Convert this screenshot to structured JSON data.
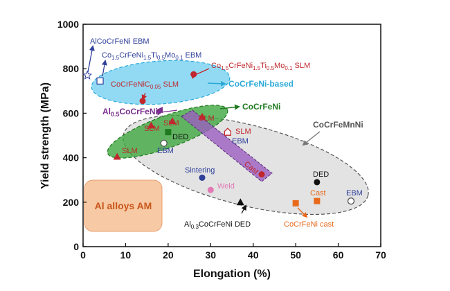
{
  "chart_data": {
    "type": "scatter",
    "xlabel": "Elongation (%)",
    "ylabel": "Yield strength (MPa)",
    "xlim": [
      0,
      70
    ],
    "ylim": [
      0,
      1000
    ],
    "xticks": [
      "0",
      "10",
      "20",
      "30",
      "40",
      "50",
      "60",
      "70"
    ],
    "yticks": [
      "0",
      "200",
      "400",
      "600",
      "800",
      "1000"
    ],
    "grid": false,
    "colors": {
      "blue": "#2f3f9a",
      "red": "#c0272d",
      "purple": "#7a2e8e",
      "green": "#1f7a1f",
      "orange": "#e86a1a",
      "pink": "#e07ab4",
      "gray": "#555555",
      "cyan": "#2aa9d8",
      "black": "#111111"
    },
    "regions": [
      {
        "label": "CoCrFeNi-based",
        "color": "cyan"
      },
      {
        "label": "CoCrFeNi",
        "color": "green"
      },
      {
        "label": "CoCrFeMnNi",
        "color": "gray"
      },
      {
        "label": "Al alloys AM",
        "color": "orange"
      }
    ],
    "points": [
      {
        "x": 1,
        "y": 770,
        "marker": "star",
        "color": "blue",
        "label": "AlCoCrFeNi EBM"
      },
      {
        "x": 4,
        "y": 745,
        "marker": "square-open",
        "color": "blue",
        "label": "Co1.5CrFeNi1.5Ti0.5Mo0.1 EBM"
      },
      {
        "x": 26,
        "y": 775,
        "marker": "circle",
        "color": "red",
        "label": "Co1.5CrFeNi1.5Ti0.5Mo0.1 SLM"
      },
      {
        "x": 14,
        "y": 655,
        "marker": "circle",
        "color": "red",
        "label": "CoCrFeNiC0.05 SLM"
      },
      {
        "x": 18,
        "y": 615,
        "marker": "triangle-left",
        "color": "purple",
        "label": "Al0.5CoCrFeNi"
      },
      {
        "x": 8,
        "y": 405,
        "marker": "triangle",
        "color": "red",
        "label": "SLM"
      },
      {
        "x": 16,
        "y": 545,
        "marker": "triangle",
        "color": "red",
        "label": "SLM"
      },
      {
        "x": 21,
        "y": 565,
        "marker": "triangle",
        "color": "red",
        "label": "SLM"
      },
      {
        "x": 28,
        "y": 585,
        "marker": "triangle",
        "color": "red",
        "label": "SLM"
      },
      {
        "x": 20,
        "y": 515,
        "marker": "square",
        "color": "green",
        "label": "DED"
      },
      {
        "x": 19,
        "y": 465,
        "marker": "circle-open",
        "color": "gray",
        "label": "EBM"
      },
      {
        "x": 34,
        "y": 515,
        "marker": "house",
        "color": "red",
        "label": "SLM"
      },
      {
        "x": 34,
        "y": 505,
        "marker": "none",
        "color": "blue",
        "label": "EBM"
      },
      {
        "x": 28,
        "y": 310,
        "marker": "circle",
        "color": "blue",
        "label": "Sintering"
      },
      {
        "x": 30,
        "y": 255,
        "marker": "circle",
        "color": "pink",
        "label": "Weld"
      },
      {
        "x": 42,
        "y": 325,
        "marker": "circle",
        "color": "red",
        "label": "Cast"
      },
      {
        "x": 55,
        "y": 290,
        "marker": "circle",
        "color": "black",
        "label": "DED"
      },
      {
        "x": 55,
        "y": 205,
        "marker": "square",
        "color": "orange",
        "label": "Cast"
      },
      {
        "x": 63,
        "y": 205,
        "marker": "circle-open",
        "color": "gray",
        "label": "EBM"
      },
      {
        "x": 37,
        "y": 200,
        "marker": "triangle",
        "color": "black",
        "label": "Al0.3CoCrFeNi DED"
      },
      {
        "x": 50,
        "y": 195,
        "marker": "square",
        "color": "orange",
        "label": "CoCrFeNi cast"
      }
    ]
  }
}
